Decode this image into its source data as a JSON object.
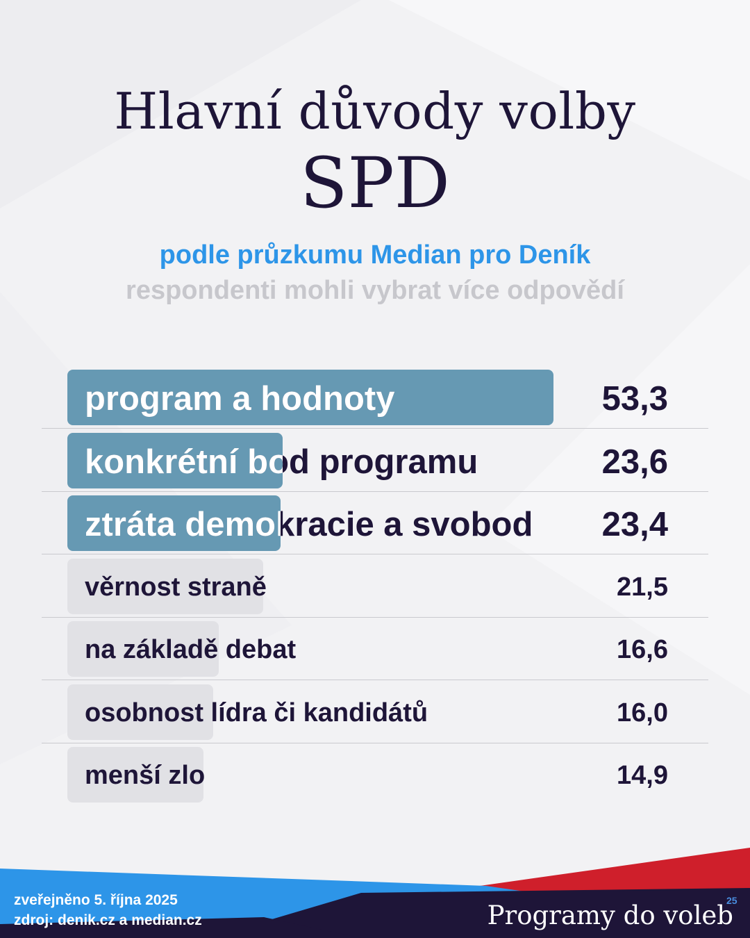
{
  "title": {
    "line1": "Hlavní důvody volby",
    "line2": "SPD"
  },
  "subtitle": {
    "source": "podle průzkumu Median pro Deník",
    "note": "respondenti mohli vybrat více odpovědí"
  },
  "colors": {
    "title": "#1e1538",
    "accent_blue": "#2d95e8",
    "bar_highlight": "#6699b3",
    "bar_muted": "#e1e1e5",
    "footer_red": "#cf1f2b",
    "footer_navy": "#1e1538"
  },
  "chart_data": {
    "type": "bar",
    "orientation": "horizontal",
    "title": "Hlavní důvody volby SPD",
    "unit": "%",
    "categories": [
      "program a hodnoty",
      "konkrétní bod programu",
      "ztráta demokracie a svobod",
      "věrnost straně",
      "na základě debat",
      "osobnost lídra či kandidátů",
      "menší zlo"
    ],
    "values": [
      53.3,
      23.6,
      23.4,
      21.5,
      16.6,
      16.0,
      14.9
    ],
    "value_labels": [
      "53,3",
      "23,6",
      "23,4",
      "21,5",
      "16,6",
      "16,0",
      "14,9"
    ],
    "highlighted": [
      true,
      true,
      true,
      false,
      false,
      false,
      false
    ],
    "xlim": [
      0,
      53.3
    ]
  },
  "footer": {
    "published": "zveřejněno 5. října 2025",
    "source": "zdroj: denik.cz a median.cz",
    "brand": "Programy do voleb",
    "brand_mark": "25"
  }
}
